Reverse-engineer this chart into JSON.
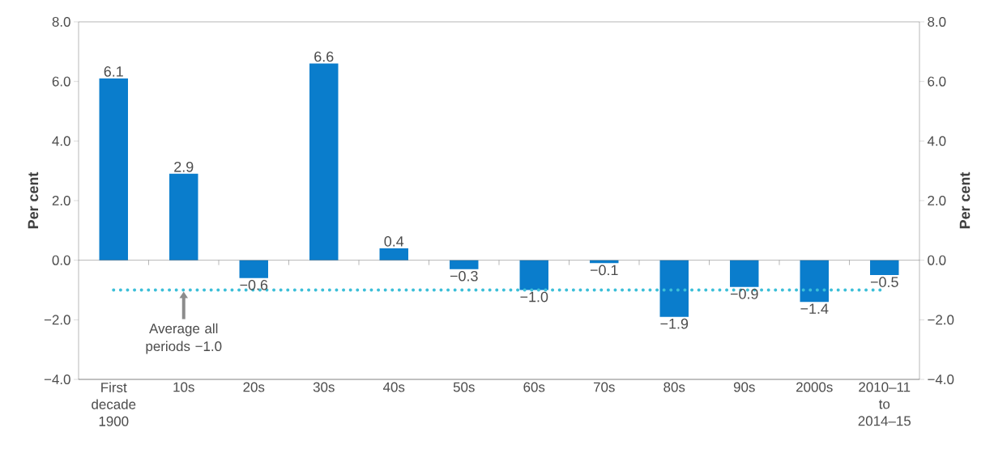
{
  "chart_data": {
    "type": "bar",
    "ylabel": "Per cent",
    "y2label": "Per cent",
    "categories": [
      "First decade 1900",
      "10s",
      "20s",
      "30s",
      "40s",
      "50s",
      "60s",
      "70s",
      "80s",
      "90s",
      "2000s",
      "2010–11 to 2014–15"
    ],
    "values": [
      6.1,
      2.9,
      -0.6,
      6.6,
      0.4,
      -0.3,
      -1.0,
      -0.1,
      -1.9,
      -0.9,
      -1.4,
      -0.5
    ],
    "value_labels": [
      "6.1",
      "2.9",
      "−0.6",
      "6.6",
      "0.4",
      "−0.3",
      "−1.0",
      "−0.1",
      "−1.9",
      "−0.9",
      "−1.4",
      "−0.5"
    ],
    "color": "#0a7dcc",
    "ylim": [
      -4,
      8
    ],
    "yticks": [
      {
        "value": -4,
        "label": "−4.0"
      },
      {
        "value": -2,
        "label": "−2.0"
      },
      {
        "value": 0,
        "label": "0.0"
      },
      {
        "value": 2,
        "label": "2.0"
      },
      {
        "value": 4,
        "label": "4.0"
      },
      {
        "value": 6,
        "label": "6.0"
      },
      {
        "value": 8,
        "label": "8.0"
      }
    ],
    "y2lim": [
      -4,
      8
    ],
    "y2ticks": [
      {
        "value": -4,
        "label": "−4.0"
      },
      {
        "value": -2,
        "label": "−2.0"
      },
      {
        "value": 0,
        "label": "0.0"
      },
      {
        "value": 2,
        "label": "2.0"
      },
      {
        "value": 4,
        "label": "4.0"
      },
      {
        "value": 6,
        "label": "6.0"
      },
      {
        "value": 8,
        "label": "8.0"
      }
    ],
    "ref_lines": [
      {
        "axis": "y",
        "value": -1.0,
        "color": "#3cbfd8",
        "line_style": "dotted"
      }
    ],
    "annotations": [
      {
        "text": "Average all periods −1.0",
        "x": "10s",
        "y": -1.0
      }
    ],
    "marker": "none"
  }
}
